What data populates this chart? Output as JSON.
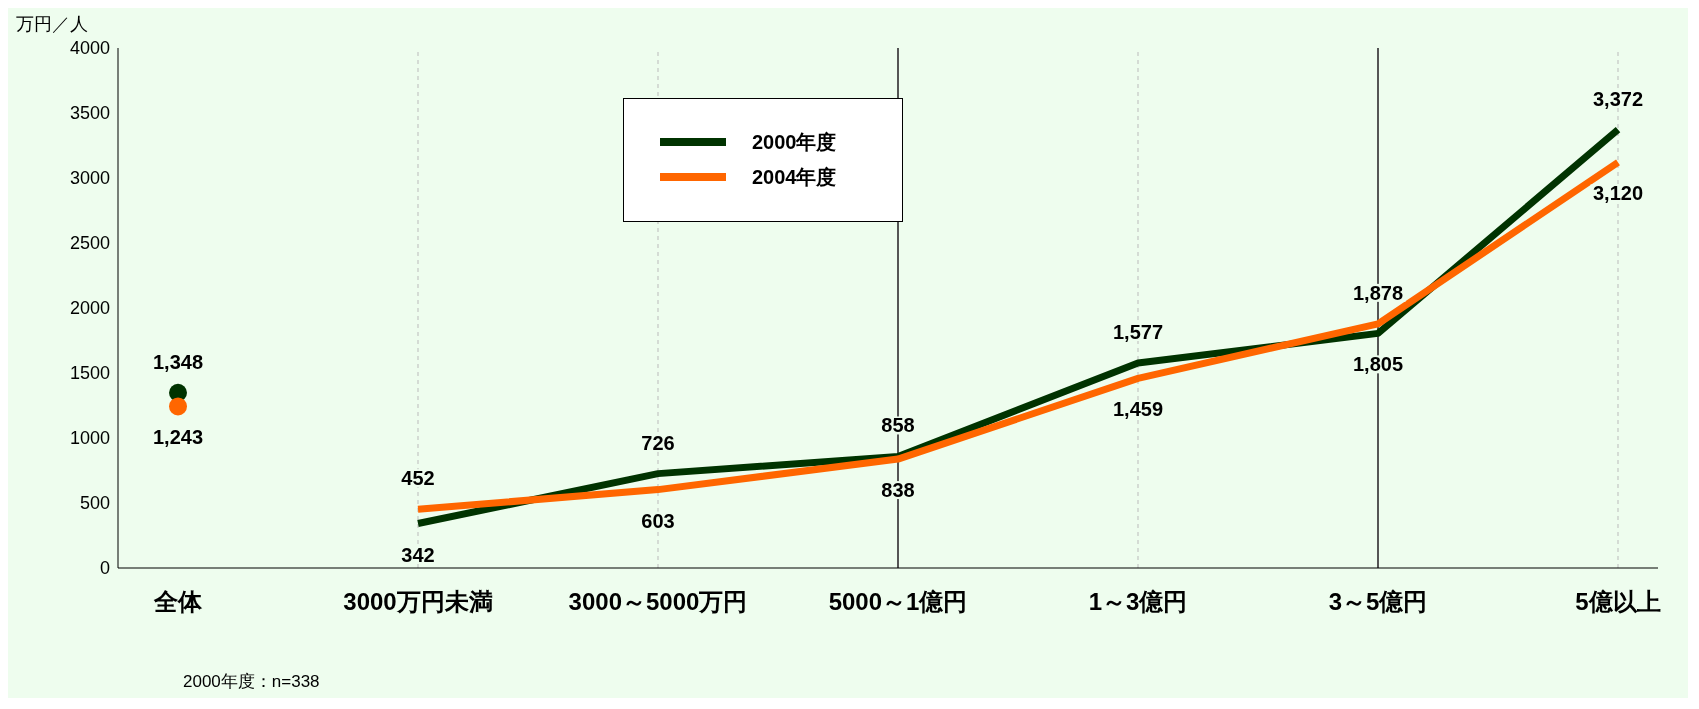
{
  "chart_data": {
    "type": "line",
    "ylabel": "万円／人",
    "categories": [
      "全体",
      "3000万円未満",
      "3000～5000万円",
      "5000～1億円",
      "1～3億円",
      "3～5億円",
      "5億以上"
    ],
    "series": [
      {
        "name": "2000年度",
        "color": "#003300",
        "values": [
          null,
          342,
          726,
          858,
          1577,
          1805,
          3372
        ],
        "value_labels": [
          null,
          "342",
          "726",
          "858",
          "1,577",
          "1,805",
          "3,372"
        ]
      },
      {
        "name": "2004年度",
        "color": "#ff6600",
        "values": [
          null,
          452,
          603,
          838,
          1459,
          1878,
          3120
        ],
        "value_labels": [
          null,
          "452",
          "603",
          "838",
          "1,459",
          "1,878",
          "3,120"
        ]
      },
      {
        "type": "scatter",
        "marker": "circle",
        "color": "#003300",
        "x": [
          "全体"
        ],
        "values": [
          1348
        ],
        "value_labels": [
          "1,348"
        ]
      },
      {
        "type": "scatter",
        "marker": "circle",
        "color": "#ff6600",
        "x": [
          "全体"
        ],
        "values": [
          1243
        ],
        "value_labels": [
          "1,243"
        ]
      }
    ],
    "ylim": [
      0,
      4000
    ],
    "yticks": [
      0,
      500,
      1000,
      1500,
      2000,
      2500,
      3000,
      3500,
      4000
    ],
    "ref_lines": [
      {
        "axis": "x",
        "value": "3000万円未満",
        "line_style": "dashed",
        "color": "#bbbbbb"
      },
      {
        "axis": "x",
        "value": "3000～5000万円",
        "line_style": "dashed",
        "color": "#bbbbbb"
      },
      {
        "axis": "x",
        "value": "5000～1億円",
        "line_style": "solid",
        "color": "#555555"
      },
      {
        "axis": "x",
        "value": "1～3億円",
        "line_style": "dashed",
        "color": "#bbbbbb"
      },
      {
        "axis": "x",
        "value": "3～5億円",
        "line_style": "solid",
        "color": "#555555"
      },
      {
        "axis": "x",
        "value": "5億以上",
        "line_style": "dashed",
        "color": "#bbbbbb"
      }
    ],
    "legend": "top",
    "annotations": [
      "2000年度：n=338"
    ]
  }
}
